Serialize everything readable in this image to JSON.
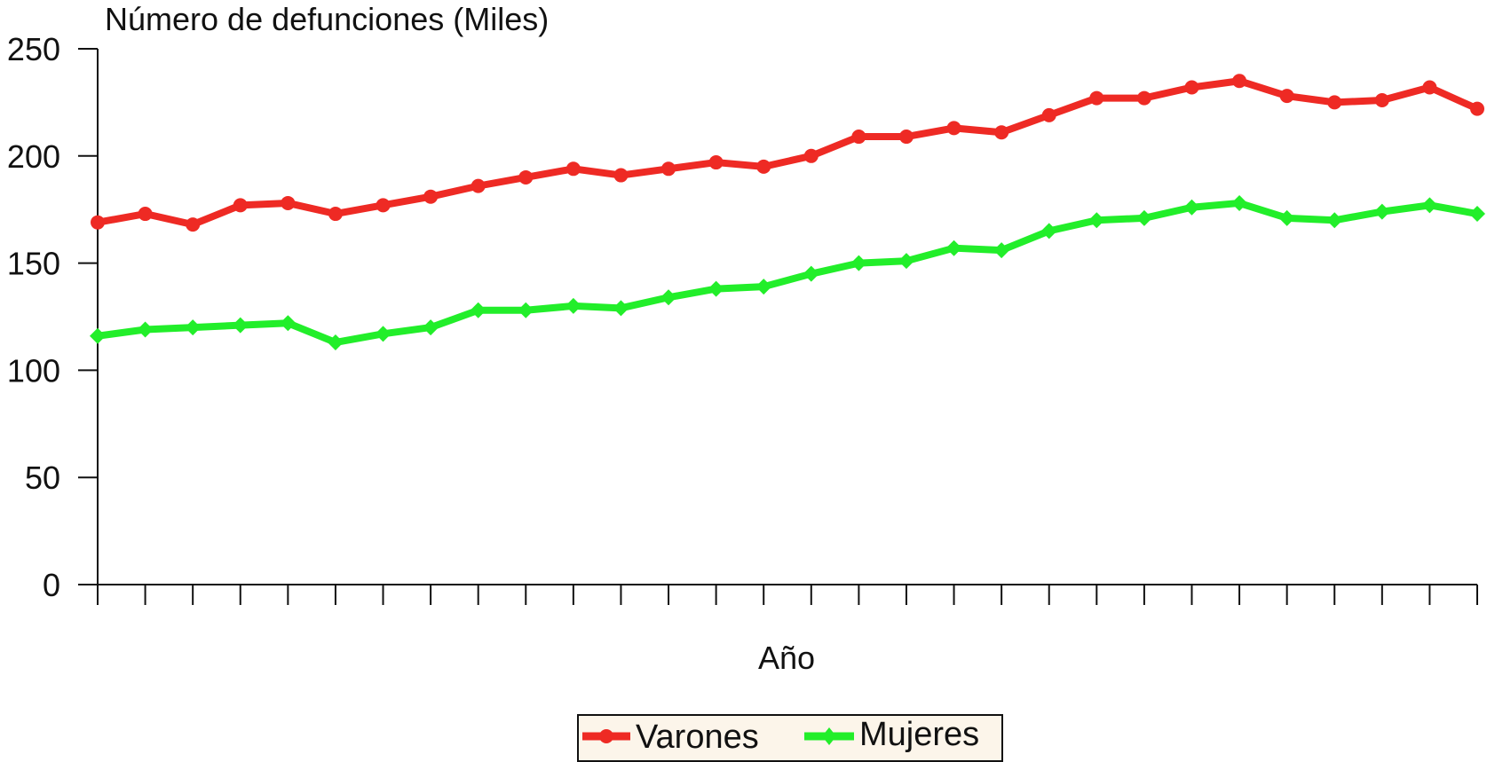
{
  "chart_data": {
    "type": "line",
    "ylabel": "Número de defunciones (Miles)",
    "xlabel": "Año",
    "ylim": [
      0,
      250
    ],
    "yticks": [
      0,
      50,
      100,
      150,
      200,
      250
    ],
    "x": [
      1,
      2,
      3,
      4,
      5,
      6,
      7,
      8,
      9,
      10,
      11,
      12,
      13,
      14,
      15,
      16,
      17,
      18,
      19,
      20,
      21,
      22,
      23,
      24,
      25,
      26,
      27,
      28,
      29,
      30
    ],
    "grid": false,
    "legend": "bottom-center",
    "series": [
      {
        "name": "Varones",
        "color": "#ee2a24",
        "marker": "circle",
        "values": [
          169,
          173,
          168,
          177,
          178,
          173,
          177,
          181,
          186,
          190,
          194,
          191,
          194,
          197,
          195,
          200,
          209,
          209,
          213,
          211,
          219,
          227,
          227,
          232,
          235,
          228,
          225,
          226,
          232,
          222
        ]
      },
      {
        "name": "Mujeres",
        "color": "#22ee2a",
        "marker": "diamond",
        "values": [
          116,
          119,
          120,
          121,
          122,
          113,
          117,
          120,
          128,
          128,
          130,
          129,
          134,
          138,
          139,
          145,
          150,
          151,
          157,
          156,
          165,
          170,
          171,
          176,
          178,
          171,
          170,
          174,
          177,
          173
        ]
      }
    ]
  }
}
